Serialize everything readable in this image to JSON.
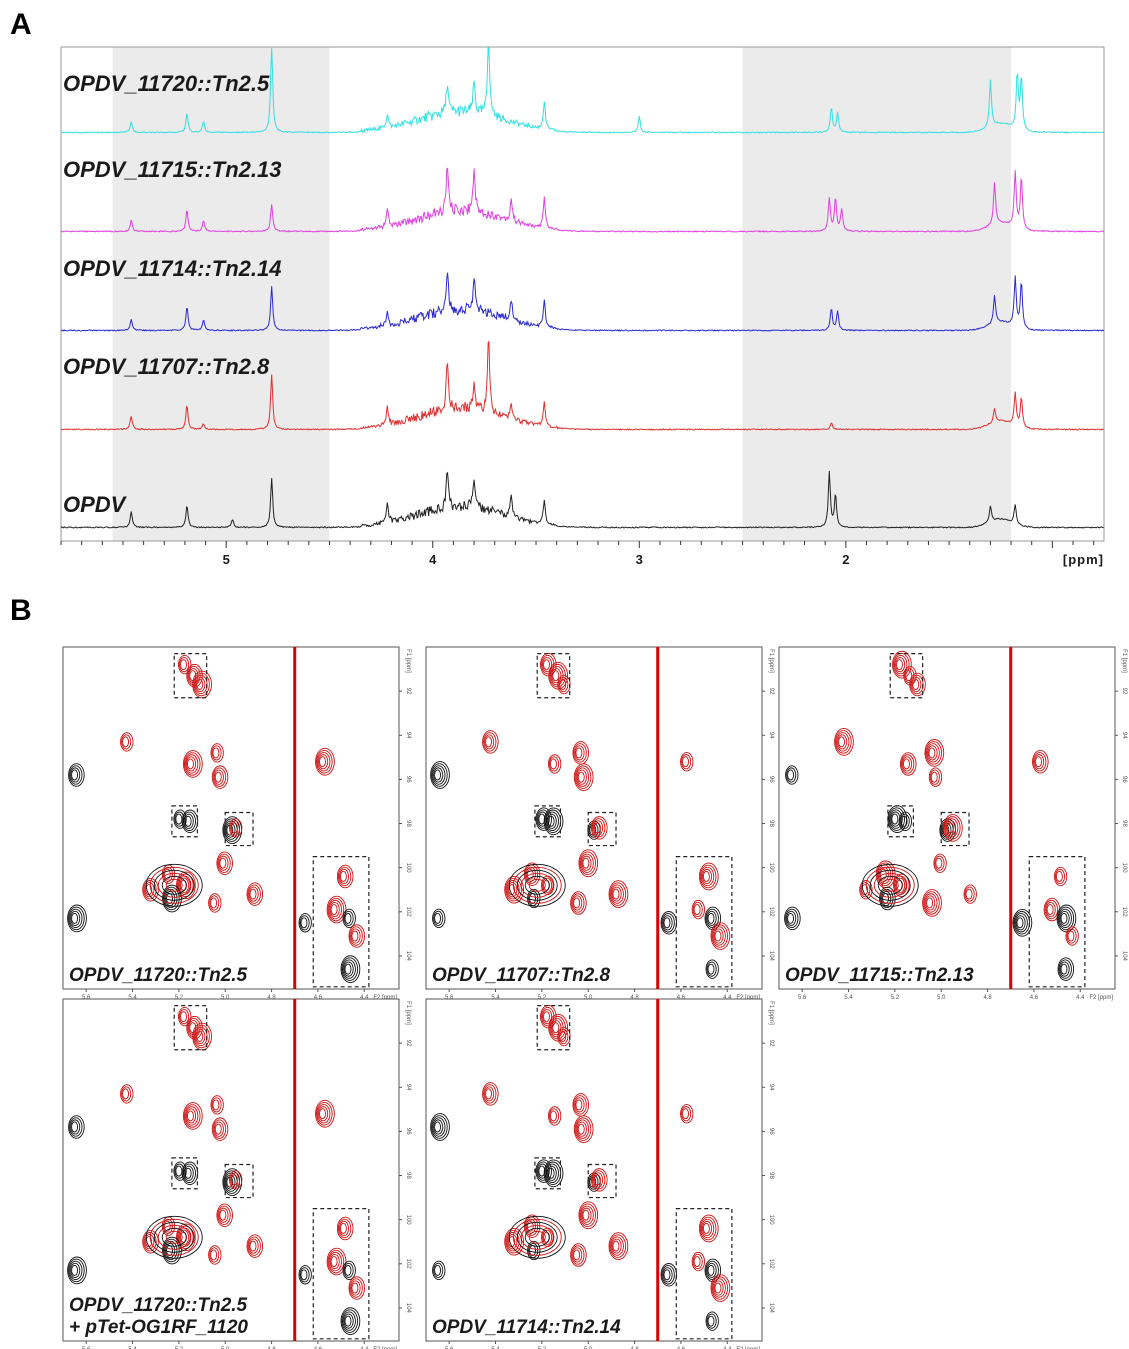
{
  "panels": {
    "a": "A",
    "b": "B"
  },
  "chart_data": [
    {
      "type": "line",
      "title": "",
      "xlabel": "[ppm]",
      "ylabel": "",
      "xlim": [
        5.8,
        0.75
      ],
      "x_ticks": [
        "5",
        "4",
        "3",
        "2"
      ],
      "x_tick_values": [
        5,
        4,
        3,
        2
      ],
      "shaded_regions": [
        [
          5.55,
          4.5
        ],
        [
          2.5,
          1.2
        ]
      ],
      "grid": false,
      "series": [
        {
          "name": "OPDV_11720::Tn2.5",
          "color": "#33e0e0",
          "peaks": [
            [
              5.46,
              0.2
            ],
            [
              5.19,
              0.35
            ],
            [
              5.11,
              0.2
            ],
            [
              4.78,
              1.6
            ],
            [
              4.22,
              0.25
            ],
            [
              3.93,
              0.55
            ],
            [
              3.8,
              0.55
            ],
            [
              3.73,
              1.5
            ],
            [
              3.46,
              0.5
            ],
            [
              3.0,
              0.3
            ],
            [
              2.07,
              0.45
            ],
            [
              2.04,
              0.35
            ],
            [
              1.3,
              0.85
            ],
            [
              1.17,
              1.0
            ],
            [
              1.15,
              0.95
            ]
          ]
        },
        {
          "name": "OPDV_11715::Tn2.13",
          "color": "#e040e0",
          "peaks": [
            [
              5.46,
              0.2
            ],
            [
              5.19,
              0.4
            ],
            [
              5.11,
              0.2
            ],
            [
              4.78,
              0.5
            ],
            [
              4.22,
              0.3
            ],
            [
              3.93,
              0.85
            ],
            [
              3.8,
              0.8
            ],
            [
              3.62,
              0.4
            ],
            [
              3.46,
              0.55
            ],
            [
              2.08,
              0.6
            ],
            [
              2.05,
              0.6
            ],
            [
              2.02,
              0.4
            ],
            [
              1.28,
              0.75
            ],
            [
              1.18,
              1.0
            ],
            [
              1.15,
              0.95
            ]
          ]
        },
        {
          "name": "OPDV_11714::Tn2.14",
          "color": "#2a2ad0",
          "peaks": [
            [
              5.46,
              0.2
            ],
            [
              5.19,
              0.45
            ],
            [
              5.11,
              0.2
            ],
            [
              4.78,
              0.8
            ],
            [
              4.22,
              0.25
            ],
            [
              3.93,
              0.75
            ],
            [
              3.8,
              0.6
            ],
            [
              3.62,
              0.35
            ],
            [
              3.46,
              0.5
            ],
            [
              2.07,
              0.4
            ],
            [
              2.04,
              0.35
            ],
            [
              1.28,
              0.5
            ],
            [
              1.18,
              0.9
            ],
            [
              1.15,
              0.85
            ]
          ]
        },
        {
          "name": "OPDV_11707::Tn2.8",
          "color": "#e03030",
          "peaks": [
            [
              5.46,
              0.25
            ],
            [
              5.19,
              0.45
            ],
            [
              5.11,
              0.1
            ],
            [
              4.78,
              1.0
            ],
            [
              4.22,
              0.3
            ],
            [
              3.93,
              0.85
            ],
            [
              3.8,
              0.55
            ],
            [
              3.73,
              1.35
            ],
            [
              3.62,
              0.3
            ],
            [
              3.46,
              0.45
            ],
            [
              2.07,
              0.12
            ],
            [
              1.28,
              0.25
            ],
            [
              1.18,
              0.6
            ],
            [
              1.15,
              0.55
            ]
          ]
        },
        {
          "name": "OPDV",
          "color": "#222222",
          "peaks": [
            [
              5.46,
              0.3
            ],
            [
              5.19,
              0.4
            ],
            [
              4.97,
              0.15
            ],
            [
              4.78,
              0.9
            ],
            [
              4.22,
              0.35
            ],
            [
              3.93,
              0.65
            ],
            [
              3.8,
              0.55
            ],
            [
              3.62,
              0.35
            ],
            [
              3.46,
              0.45
            ],
            [
              2.08,
              1.0
            ],
            [
              2.05,
              0.6
            ],
            [
              1.3,
              0.3
            ],
            [
              1.18,
              0.35
            ]
          ]
        }
      ]
    },
    {
      "type": "scatter",
      "title": "",
      "xlabel": "F2 [ppm]",
      "ylabel": "F1 [ppm]",
      "x_ticks": [
        "5.6",
        "5.4",
        "5.2",
        "5.0",
        "4.8",
        "4.6",
        "4.4"
      ],
      "y_ticks": [
        "92",
        "94",
        "96",
        "98",
        "100",
        "102",
        "104"
      ],
      "xlim": [
        5.7,
        4.25
      ],
      "ylim": [
        90.0,
        105.5
      ],
      "panels": [
        {
          "name": "OPDV_11720::Tn2.5"
        },
        {
          "name": "OPDV_11707::Tn2.8"
        },
        {
          "name": "OPDV_11715::Tn2.13"
        },
        {
          "name": "OPDV_11720::Tn2.5",
          "name2": "+ pTet-OG1RF_1120"
        },
        {
          "name": "OPDV_11714::Tn2.14"
        }
      ],
      "contours": [
        {
          "x": 5.18,
          "y": 90.8,
          "color": "red"
        },
        {
          "x": 5.14,
          "y": 91.3,
          "color": "red"
        },
        {
          "x": 5.11,
          "y": 91.7,
          "color": "red"
        },
        {
          "x": 5.43,
          "y": 94.3,
          "color": "red"
        },
        {
          "x": 5.65,
          "y": 95.8,
          "color": "black"
        },
        {
          "x": 5.15,
          "y": 95.3,
          "color": "red"
        },
        {
          "x": 5.04,
          "y": 94.8,
          "color": "red"
        },
        {
          "x": 5.03,
          "y": 95.9,
          "color": "red"
        },
        {
          "x": 4.58,
          "y": 95.2,
          "color": "red"
        },
        {
          "x": 5.2,
          "y": 97.8,
          "color": "black"
        },
        {
          "x": 5.16,
          "y": 97.9,
          "color": "black"
        },
        {
          "x": 4.98,
          "y": 98.3,
          "color": "black"
        },
        {
          "x": 4.96,
          "y": 98.2,
          "color": "red"
        },
        {
          "x": 5.01,
          "y": 99.8,
          "color": "red"
        },
        {
          "x": 5.18,
          "y": 100.8,
          "color": "red"
        },
        {
          "x": 5.25,
          "y": 100.3,
          "color": "red"
        },
        {
          "x": 5.33,
          "y": 101.0,
          "color": "red"
        },
        {
          "x": 5.24,
          "y": 101.4,
          "color": "black"
        },
        {
          "x": 5.05,
          "y": 101.6,
          "color": "red"
        },
        {
          "x": 4.88,
          "y": 101.2,
          "color": "red"
        },
        {
          "x": 5.65,
          "y": 102.3,
          "color": "black"
        },
        {
          "x": 4.66,
          "y": 102.5,
          "color": "black"
        },
        {
          "x": 4.49,
          "y": 100.4,
          "color": "red"
        },
        {
          "x": 4.53,
          "y": 101.9,
          "color": "red"
        },
        {
          "x": 4.47,
          "y": 102.3,
          "color": "black"
        },
        {
          "x": 4.44,
          "y": 103.1,
          "color": "red"
        },
        {
          "x": 4.47,
          "y": 104.6,
          "color": "black"
        }
      ],
      "boxes": [
        {
          "x": [
            5.22,
            5.08
          ],
          "y": [
            90.3,
            92.3
          ]
        },
        {
          "x": [
            5.23,
            5.12
          ],
          "y": [
            97.2,
            98.6
          ]
        },
        {
          "x": [
            5.0,
            4.88
          ],
          "y": [
            97.5,
            99.0
          ]
        },
        {
          "x": [
            4.62,
            4.38
          ],
          "y": [
            99.5,
            105.4
          ]
        }
      ],
      "water_line_x": 4.7
    }
  ]
}
